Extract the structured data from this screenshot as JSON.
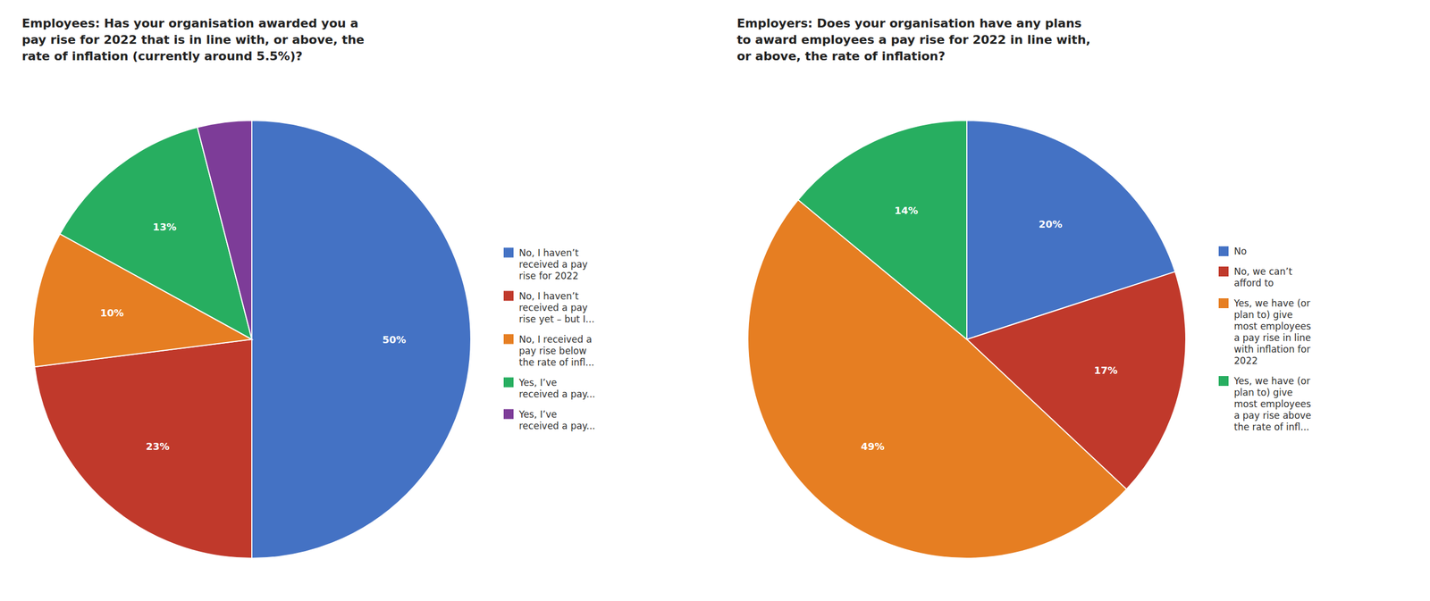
{
  "chart_data": [
    {
      "type": "pie",
      "title": "Employees: Has your organisation awarded you a\npay rise for 2022 that is in line with, or above, the\nrate of inflation (currently around 5.5%)?",
      "categories": [
        "No, I haven’t\nreceived a pay\nrise for 2022",
        "No, I haven’t\nreceived a pay\nrise yet – but I...",
        "No, I received a\npay rise below\nthe rate of infl...",
        "Yes, I’ve\nreceived a pay...",
        "Yes, I’ve\nreceived a pay..."
      ],
      "values": [
        50,
        23,
        10,
        13,
        4
      ],
      "value_labels": [
        "50%",
        "23%",
        "10%",
        "13%",
        null
      ],
      "colors": [
        "#4472C4",
        "#C0392B",
        "#E67E22",
        "#27AE60",
        "#7D3C98"
      ],
      "legend": "right"
    },
    {
      "type": "pie",
      "title": "Employers: Does your organisation have any plans\nto award employees a pay rise for 2022 in line with,\nor above, the rate of inflation?",
      "categories": [
        "No",
        "No, we can’t\nafford to",
        "Yes, we have (or\nplan to) give\nmost employees\na pay rise in line\nwith inflation for\n2022",
        "Yes, we have (or\nplan to) give\nmost employees\na pay rise above\nthe rate of infl..."
      ],
      "values": [
        20,
        17,
        49,
        14
      ],
      "value_labels": [
        "20%",
        "17%",
        "49%",
        "14%"
      ],
      "colors": [
        "#4472C4",
        "#C0392B",
        "#E67E22",
        "#27AE60"
      ],
      "legend": "right"
    }
  ]
}
